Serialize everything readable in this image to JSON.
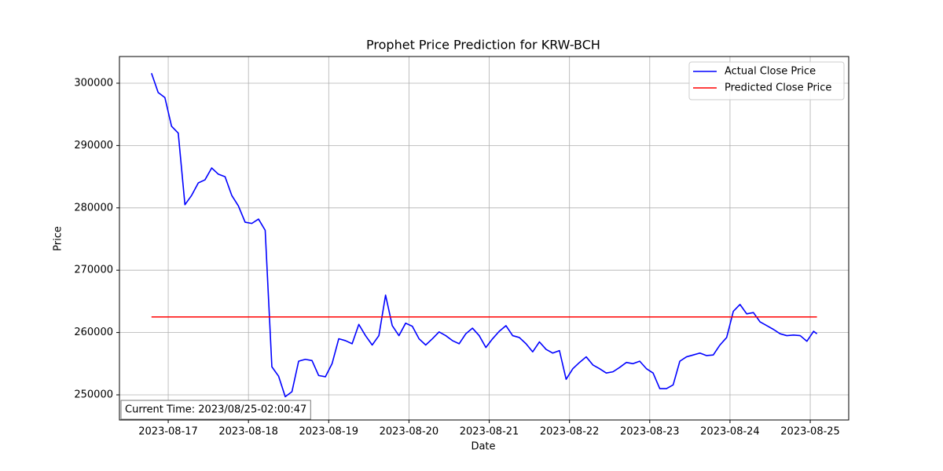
{
  "chart_data": {
    "type": "line",
    "title": "Prophet Price Prediction for KRW-BCH",
    "xlabel": "Date",
    "ylabel": "Price",
    "annotation": "Current Time: 2023/08/25-02:00:47",
    "grid": true,
    "legend": "upper right",
    "xlim": [
      "2023-08-16 09:25",
      "2023-08-25 11:30"
    ],
    "xticks": [
      "2023-08-17",
      "2023-08-18",
      "2023-08-19",
      "2023-08-20",
      "2023-08-21",
      "2023-08-22",
      "2023-08-23",
      "2023-08-24",
      "2023-08-25"
    ],
    "ylim": [
      245970,
      304280
    ],
    "yticks": [
      250000,
      260000,
      270000,
      280000,
      290000,
      300000
    ],
    "x": [
      "2023-08-16 19:00",
      "2023-08-16 21:00",
      "2023-08-16 23:00",
      "2023-08-17 01:00",
      "2023-08-17 03:00",
      "2023-08-17 05:00",
      "2023-08-17 07:00",
      "2023-08-17 09:00",
      "2023-08-17 11:00",
      "2023-08-17 13:00",
      "2023-08-17 15:00",
      "2023-08-17 17:00",
      "2023-08-17 19:00",
      "2023-08-17 21:00",
      "2023-08-17 23:00",
      "2023-08-18 01:00",
      "2023-08-18 03:00",
      "2023-08-18 05:00",
      "2023-08-18 07:00",
      "2023-08-18 09:00",
      "2023-08-18 11:00",
      "2023-08-18 13:00",
      "2023-08-18 15:00",
      "2023-08-18 17:00",
      "2023-08-18 19:00",
      "2023-08-18 21:00",
      "2023-08-18 23:00",
      "2023-08-19 01:00",
      "2023-08-19 03:00",
      "2023-08-19 05:00",
      "2023-08-19 07:00",
      "2023-08-19 09:00",
      "2023-08-19 11:00",
      "2023-08-19 13:00",
      "2023-08-19 15:00",
      "2023-08-19 17:00",
      "2023-08-19 19:00",
      "2023-08-19 21:00",
      "2023-08-19 23:00",
      "2023-08-20 01:00",
      "2023-08-20 03:00",
      "2023-08-20 05:00",
      "2023-08-20 07:00",
      "2023-08-20 09:00",
      "2023-08-20 11:00",
      "2023-08-20 13:00",
      "2023-08-20 15:00",
      "2023-08-20 17:00",
      "2023-08-20 19:00",
      "2023-08-20 21:00",
      "2023-08-20 23:00",
      "2023-08-21 01:00",
      "2023-08-21 03:00",
      "2023-08-21 05:00",
      "2023-08-21 07:00",
      "2023-08-21 09:00",
      "2023-08-21 11:00",
      "2023-08-21 13:00",
      "2023-08-21 15:00",
      "2023-08-21 17:00",
      "2023-08-21 19:00",
      "2023-08-21 21:00",
      "2023-08-21 23:00",
      "2023-08-22 01:00",
      "2023-08-22 03:00",
      "2023-08-22 05:00",
      "2023-08-22 07:00",
      "2023-08-22 09:00",
      "2023-08-22 11:00",
      "2023-08-22 13:00",
      "2023-08-22 15:00",
      "2023-08-22 17:00",
      "2023-08-22 19:00",
      "2023-08-22 21:00",
      "2023-08-22 23:00",
      "2023-08-23 01:00",
      "2023-08-23 03:00",
      "2023-08-23 05:00",
      "2023-08-23 07:00",
      "2023-08-23 09:00",
      "2023-08-23 11:00",
      "2023-08-23 13:00",
      "2023-08-23 15:00",
      "2023-08-23 17:00",
      "2023-08-23 19:00",
      "2023-08-23 21:00",
      "2023-08-23 23:00",
      "2023-08-24 01:00",
      "2023-08-24 03:00",
      "2023-08-24 05:00",
      "2023-08-24 07:00",
      "2023-08-24 09:00",
      "2023-08-24 11:00",
      "2023-08-24 13:00",
      "2023-08-24 15:00",
      "2023-08-24 17:00",
      "2023-08-24 19:00",
      "2023-08-24 21:00",
      "2023-08-24 23:00",
      "2023-08-25 01:00",
      "2023-08-25 02:00"
    ],
    "series": [
      {
        "name": "Actual Close Price",
        "color": "#0000ff",
        "values": [
          301600,
          298500,
          297700,
          293100,
          292000,
          280500,
          282000,
          284000,
          284500,
          286400,
          285400,
          285000,
          282000,
          280300,
          277700,
          277500,
          278200,
          276400,
          254500,
          253000,
          249700,
          250500,
          255400,
          255700,
          255500,
          253100,
          252900,
          255000,
          259000,
          258700,
          258200,
          261300,
          259500,
          258000,
          259500,
          266000,
          261100,
          259500,
          261500,
          261000,
          259000,
          258000,
          259000,
          260100,
          259500,
          258700,
          258200,
          259800,
          260700,
          259500,
          257600,
          259000,
          260200,
          261100,
          259500,
          259200,
          258200,
          256900,
          258500,
          257300,
          256700,
          257100,
          252500,
          254200,
          255200,
          256100,
          254800,
          254200,
          253500,
          253700,
          254400,
          255200,
          255000,
          255400,
          254200,
          253500,
          251000,
          251000,
          251600,
          255400,
          256100,
          256400,
          256700,
          256300,
          256400,
          258000,
          259200,
          263400,
          264500,
          263000,
          263200,
          261700,
          261100,
          260500,
          259800,
          259500,
          259600,
          259500,
          258600,
          260200,
          259800
        ]
      },
      {
        "name": "Predicted Close Price",
        "color": "#ff0000",
        "x": [
          "2023-08-16 19:00",
          "2023-08-25 02:00"
        ],
        "values": [
          262500,
          262500
        ]
      }
    ]
  }
}
